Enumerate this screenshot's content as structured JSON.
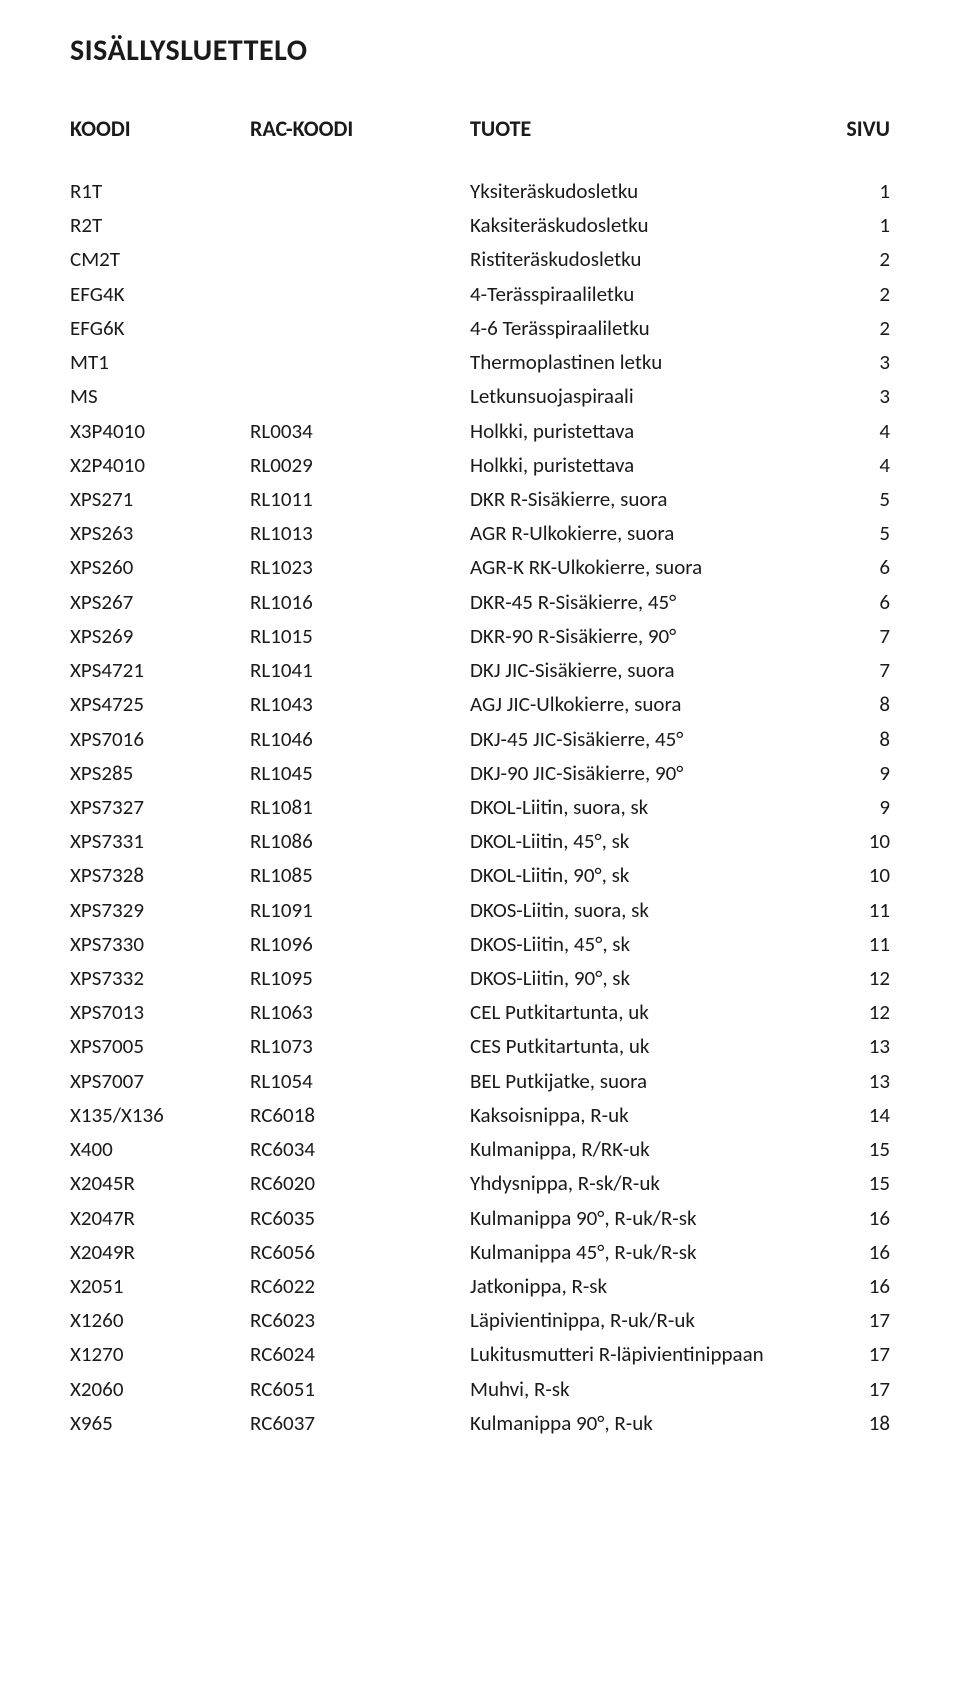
{
  "title": "SISÄLLYSLUETTELO",
  "headers": {
    "koodi": "KOODI",
    "rac": "RAC-KOODI",
    "tuote": "TUOTE",
    "sivu": "SIVU"
  },
  "rows": [
    {
      "koodi": "R1T",
      "rac": "",
      "tuote": "Yksiteräskudosletku",
      "sivu": "1"
    },
    {
      "koodi": "R2T",
      "rac": "",
      "tuote": "Kaksiteräskudosletku",
      "sivu": "1"
    },
    {
      "koodi": "CM2T",
      "rac": "",
      "tuote": "Ristiteräskudosletku",
      "sivu": "2"
    },
    {
      "koodi": "EFG4K",
      "rac": "",
      "tuote": "4-Terässpiraaliletku",
      "sivu": "2"
    },
    {
      "koodi": "EFG6K",
      "rac": "",
      "tuote": "4-6 Terässpiraaliletku",
      "sivu": "2"
    },
    {
      "koodi": "MT1",
      "rac": "",
      "tuote": "Thermoplastinen letku",
      "sivu": "3"
    },
    {
      "koodi": "MS",
      "rac": "",
      "tuote": "Letkunsuojaspiraali",
      "sivu": "3"
    },
    {
      "koodi": "X3P4010",
      "rac": "RL0034",
      "tuote": "Holkki, puristettava",
      "sivu": "4"
    },
    {
      "koodi": "X2P4010",
      "rac": "RL0029",
      "tuote": "Holkki, puristettava",
      "sivu": "4"
    },
    {
      "koodi": "XPS271",
      "rac": "RL1011",
      "tuote": "DKR R-Sisäkierre, suora",
      "sivu": "5"
    },
    {
      "koodi": "XPS263",
      "rac": "RL1013",
      "tuote": "AGR R-Ulkokierre, suora",
      "sivu": "5"
    },
    {
      "koodi": "XPS260",
      "rac": "RL1023",
      "tuote": "AGR-K RK-Ulkokierre, suora",
      "sivu": "6"
    },
    {
      "koodi": "XPS267",
      "rac": "RL1016",
      "tuote": "DKR-45 R-Sisäkierre, 45°",
      "sivu": "6"
    },
    {
      "koodi": "XPS269",
      "rac": "RL1015",
      "tuote": "DKR-90 R-Sisäkierre, 90°",
      "sivu": "7"
    },
    {
      "koodi": "XPS4721",
      "rac": "RL1041",
      "tuote": "DKJ JIC-Sisäkierre, suora",
      "sivu": "7"
    },
    {
      "koodi": "XPS4725",
      "rac": "RL1043",
      "tuote": "AGJ JIC-Ulkokierre, suora",
      "sivu": "8"
    },
    {
      "koodi": "XPS7016",
      "rac": "RL1046",
      "tuote": "DKJ-45 JIC-Sisäkierre, 45°",
      "sivu": "8"
    },
    {
      "koodi": "XPS285",
      "rac": "RL1045",
      "tuote": "DKJ-90 JIC-Sisäkierre, 90°",
      "sivu": "9"
    },
    {
      "koodi": "XPS7327",
      "rac": "RL1081",
      "tuote": "DKOL-Liitin, suora, sk",
      "sivu": "9"
    },
    {
      "koodi": "XPS7331",
      "rac": "RL1086",
      "tuote": "DKOL-Liitin, 45°, sk",
      "sivu": "10"
    },
    {
      "koodi": "XPS7328",
      "rac": "RL1085",
      "tuote": "DKOL-Liitin, 90°, sk",
      "sivu": "10"
    },
    {
      "koodi": "XPS7329",
      "rac": "RL1091",
      "tuote": "DKOS-Liitin, suora, sk",
      "sivu": "11"
    },
    {
      "koodi": "XPS7330",
      "rac": "RL1096",
      "tuote": "DKOS-Liitin, 45°, sk",
      "sivu": "11"
    },
    {
      "koodi": "XPS7332",
      "rac": "RL1095",
      "tuote": "DKOS-Liitin, 90°, sk",
      "sivu": "12"
    },
    {
      "koodi": "XPS7013",
      "rac": "RL1063",
      "tuote": "CEL Putkitartunta, uk",
      "sivu": "12"
    },
    {
      "koodi": "XPS7005",
      "rac": "RL1073",
      "tuote": "CES Putkitartunta, uk",
      "sivu": "13"
    },
    {
      "koodi": "XPS7007",
      "rac": "RL1054",
      "tuote": "BEL Putkijatke, suora",
      "sivu": "13"
    },
    {
      "koodi": "X135/X136",
      "rac": "RC6018",
      "tuote": "Kaksoisnippa, R-uk",
      "sivu": "14"
    },
    {
      "koodi": "X400",
      "rac": "RC6034",
      "tuote": "Kulmanippa, R/RK-uk",
      "sivu": "15"
    },
    {
      "koodi": "X2045R",
      "rac": "RC6020",
      "tuote": "Yhdysnippa, R-sk/R-uk",
      "sivu": "15"
    },
    {
      "koodi": "X2047R",
      "rac": "RC6035",
      "tuote": "Kulmanippa 90°, R-uk/R-sk",
      "sivu": "16"
    },
    {
      "koodi": "X2049R",
      "rac": "RC6056",
      "tuote": "Kulmanippa 45°, R-uk/R-sk",
      "sivu": "16"
    },
    {
      "koodi": "X2051",
      "rac": "RC6022",
      "tuote": "Jatkonippa, R-sk",
      "sivu": "16"
    },
    {
      "koodi": "X1260",
      "rac": "RC6023",
      "tuote": "Läpivientinippa, R-uk/R-uk",
      "sivu": "17"
    },
    {
      "koodi": "X1270",
      "rac": "RC6024",
      "tuote": "Lukitusmutteri R-läpivientinippaan",
      "sivu": "17"
    },
    {
      "koodi": "X2060",
      "rac": "RC6051",
      "tuote": "Muhvi, R-sk",
      "sivu": "17"
    },
    {
      "koodi": "X965",
      "rac": "RC6037",
      "tuote": "Kulmanippa 90°, R-uk",
      "sivu": "18"
    }
  ]
}
